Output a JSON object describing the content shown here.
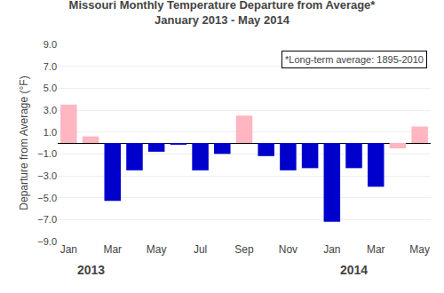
{
  "chart_data": {
    "type": "bar",
    "title": "Missouri Monthly Temperature Departure from Average*",
    "subtitle": "January 2013 - May 2014",
    "ylabel": "Departure from Average (°F)",
    "categories": [
      "Jan",
      null,
      "Mar",
      null,
      "May",
      null,
      "Jul",
      null,
      "Sep",
      null,
      "Nov",
      null,
      "Jan",
      null,
      "Mar",
      null,
      "May"
    ],
    "values": [
      3.5,
      0.6,
      -5.3,
      -2.5,
      -0.8,
      -0.1,
      -2.5,
      -1.0,
      2.5,
      -1.2,
      -2.5,
      -2.3,
      -7.2,
      -2.3,
      -4.0,
      -0.5,
      1.5
    ],
    "colors": [
      "#FFB6C1",
      "#FFB6C1",
      "#0000CD",
      "#0000CD",
      "#0000CD",
      "#0000CD",
      "#0000CD",
      "#0000CD",
      "#FFB6C1",
      "#0000CD",
      "#0000CD",
      "#0000CD",
      "#0000CD",
      "#0000CD",
      "#0000CD",
      "#FFB6C1",
      "#FFB6C1"
    ],
    "ylim": [
      -9.0,
      9.0
    ],
    "yticks": [
      {
        "value": -9.0,
        "label": "−9.0"
      },
      {
        "value": -7.0,
        "label": "−7.0"
      },
      {
        "value": -5.0,
        "label": "−5.0"
      },
      {
        "value": -3.0,
        "label": "−3.0"
      },
      {
        "value": -1.0,
        "label": "−1.0"
      },
      {
        "value": 1.0,
        "label": "1.0"
      },
      {
        "value": 3.0,
        "label": "3.0"
      },
      {
        "value": 5.0,
        "label": "5.0"
      },
      {
        "value": 7.0,
        "label": "7.0"
      },
      {
        "value": 9.0,
        "label": "9.0"
      }
    ],
    "grid": true,
    "annotations": [
      {
        "text": "*Long-term average: 1895-2010"
      },
      {
        "text": "2013",
        "x": 1.0
      },
      {
        "text": "2014",
        "x": 13.0
      }
    ]
  }
}
